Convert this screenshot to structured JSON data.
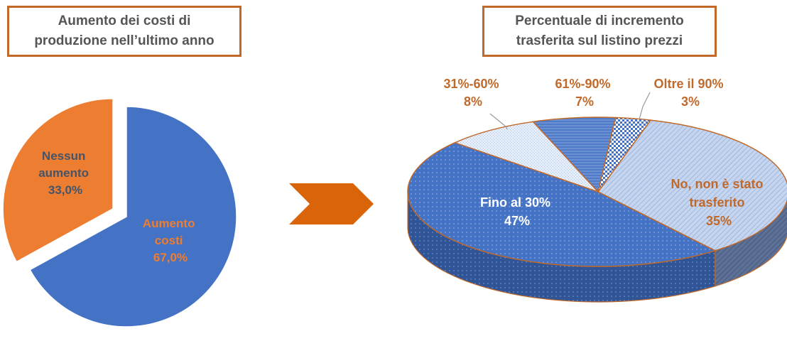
{
  "theme": {
    "blue": "#4472c4",
    "orange": "#ed7d31",
    "title_border": "#c0692a",
    "label_brown": "#c0692a",
    "arrow": "#d9640a"
  },
  "chart_data": [
    {
      "type": "pie",
      "title_lines": [
        "Aumento dei costi di",
        "produzione nell’ultimo anno"
      ],
      "slices": [
        {
          "label_lines": [
            "Aumento",
            "costi"
          ],
          "value_label": "67,0%",
          "value": 67.0,
          "color": "#4472c4",
          "exploded": false
        },
        {
          "label_lines": [
            "Nessun",
            "aumento"
          ],
          "value_label": "33,0%",
          "value": 33.0,
          "color": "#ed7d31",
          "exploded": true
        }
      ]
    },
    {
      "type": "pie",
      "style": "3d",
      "title_lines": [
        "Percentuale di incremento",
        "trasferita sul listino prezzi"
      ],
      "slices": [
        {
          "label_lines": [
            "No, non è stato",
            "trasferito"
          ],
          "value_label": "35%",
          "value": 35,
          "color": "#b4c7e7"
        },
        {
          "label_lines": [
            "Fino al 30%"
          ],
          "value_label": "47%",
          "value": 47,
          "color": "#4472c4"
        },
        {
          "label_lines": [
            "31%-60%"
          ],
          "value_label": "8%",
          "value": 8,
          "color": "#dae3f3"
        },
        {
          "label_lines": [
            "61%-90%"
          ],
          "value_label": "7%",
          "value": 7,
          "color": "#5b84cc"
        },
        {
          "label_lines": [
            "Oltre il 90%"
          ],
          "value_label": "3%",
          "value": 3,
          "color": "#9dc3e6"
        }
      ]
    }
  ]
}
